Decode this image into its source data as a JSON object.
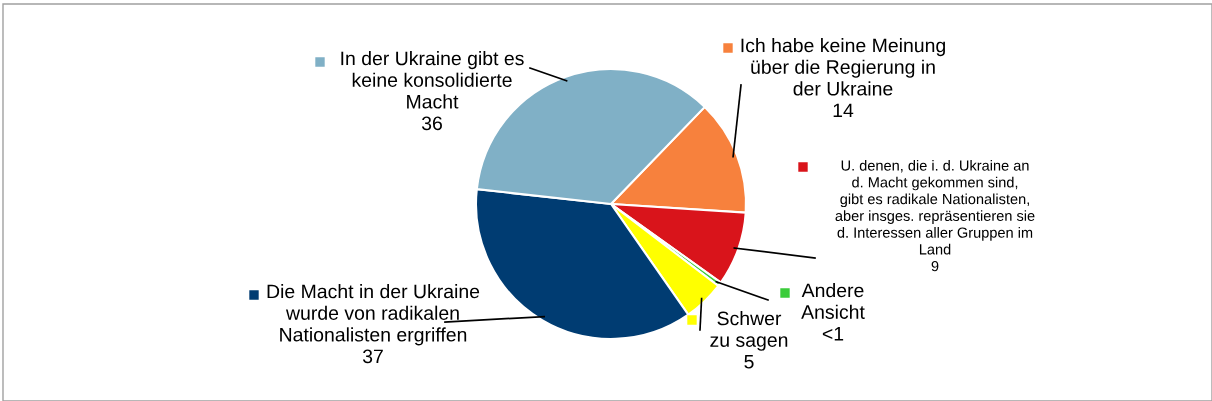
{
  "chart_data": {
    "type": "pie",
    "categories": [
      "Ich habe keine Meinung\nüber die Regierung in\nder Ukraine",
      "U. denen, die i. d. Ukraine an\nd. Macht gekommen sind,\ngibt es radikale Nationalisten,\naber insges. repräsentieren sie\nd. Interessen aller Gruppen im\nLand",
      "Andere\nAnsicht",
      "Schwer\nzu sagen",
      "Die Macht in der Ukraine\nwurde von radikalen\nNationalisten ergriffen",
      "In der Ukraine gibt es\nkeine konsolidierte\nMacht"
    ],
    "values": [
      14,
      9,
      0.5,
      5,
      37,
      36
    ],
    "colors": [
      "#f7813d",
      "#d9141b",
      "#3bcc3b",
      "#ffff00",
      "#003c72",
      "#80b0c6"
    ],
    "value_labels": [
      "14",
      "9",
      "<1",
      "5",
      "37",
      "36"
    ],
    "legend": "right"
  }
}
